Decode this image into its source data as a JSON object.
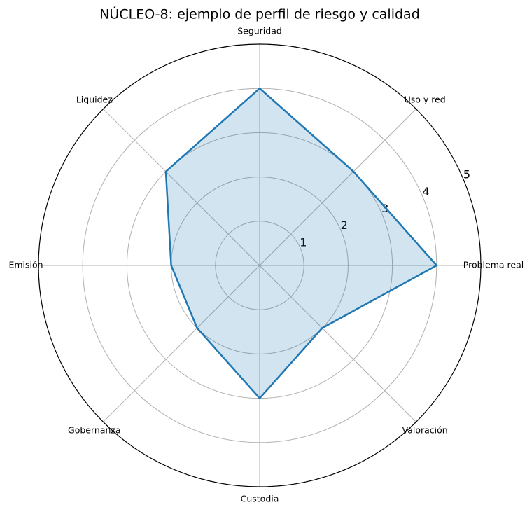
{
  "chart_data": {
    "type": "radar",
    "title": "NÚCLEO-8: ejemplo de perfil de riesgo y calidad",
    "categories": [
      "Problema real",
      "Uso y red",
      "Seguridad",
      "Liquidez",
      "Emisión",
      "Gobernanza",
      "Custodia",
      "Valoración"
    ],
    "series": [
      {
        "values": [
          4,
          3,
          4,
          3,
          2,
          2,
          3,
          2
        ],
        "color": "#1f77b4"
      }
    ],
    "ylim": [
      0,
      5
    ],
    "yticks": [
      1,
      2,
      3,
      4,
      5
    ],
    "grid": true
  }
}
